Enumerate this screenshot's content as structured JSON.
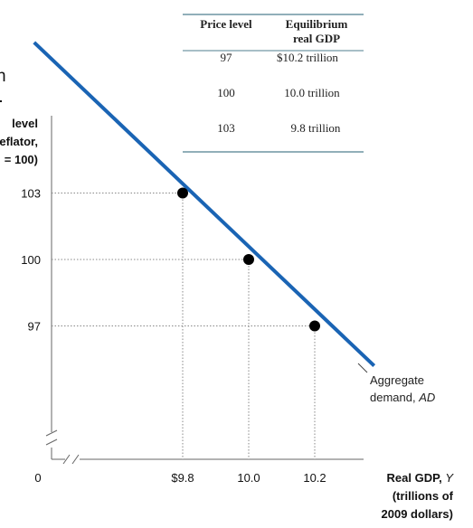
{
  "chart_data": {
    "type": "line",
    "series": [
      {
        "name": "Aggregate demand, AD",
        "x": [
          9.8,
          10.0,
          10.2
        ],
        "y": [
          103,
          100,
          97
        ]
      }
    ],
    "curve_extent": {
      "x": [
        9.35,
        10.38
      ],
      "y": [
        109.8,
        95.2
      ]
    },
    "xticks": [
      {
        "value": 9.8,
        "label": "$9.8"
      },
      {
        "value": 10.0,
        "label": "10.0"
      },
      {
        "value": 10.2,
        "label": "10.2"
      }
    ],
    "yticks": [
      {
        "value": 103,
        "label": "103"
      },
      {
        "value": 100,
        "label": "100"
      },
      {
        "value": 97,
        "label": "97"
      }
    ],
    "origin_label": "0",
    "axis_breaks": true,
    "ylabel_lines": [
      "level",
      "eflator,",
      "= 100)"
    ],
    "xlabel_lines": [
      "Real GDP, Y",
      "(trillions of",
      "2009 dollars)"
    ],
    "annotation_lines": [
      "Aggregate",
      "demand, AD"
    ],
    "left_edge_text": "n",
    "line_color": "#1a64b4",
    "point_color": "#000000"
  },
  "table": {
    "headers": [
      "Price level",
      "Equilibrium real GDP"
    ],
    "rows": [
      [
        "97",
        "$10.2 trillion"
      ],
      [
        "100",
        "10.0 trillion"
      ],
      [
        "103",
        "9.8 trillion"
      ]
    ]
  }
}
